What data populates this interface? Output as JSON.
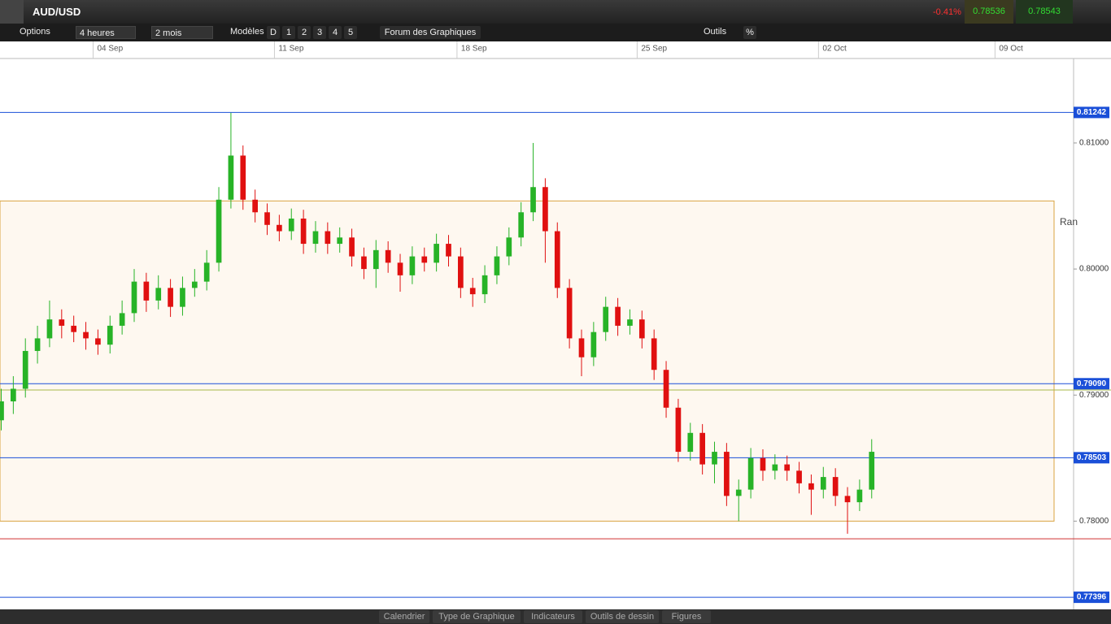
{
  "toolbar": {
    "symbol": "AUD/USD",
    "change": "-0.41%",
    "bid": "0.78536",
    "ask": "0.78543",
    "options": "Options",
    "interval": "4 heures",
    "range": "2 mois",
    "templates": "Modèles",
    "periods": [
      "D",
      "1",
      "2",
      "3",
      "4",
      "5"
    ],
    "forum": "Forum des Graphiques",
    "tools": "Outils",
    "percent": "%"
  },
  "bottom_bar": [
    "Calendrier",
    "Type de Graphique",
    "Indicateurs",
    "Outils de dessin",
    "Figures"
  ],
  "chart_data": {
    "type": "candlestick",
    "categories": [
      null,
      null,
      null,
      null,
      null,
      null,
      null,
      null,
      null,
      null,
      null,
      null,
      null,
      null,
      null,
      null,
      null,
      null,
      null,
      null,
      null,
      null,
      null,
      null,
      null,
      null,
      null,
      null,
      null,
      null,
      null,
      null,
      null,
      null,
      null,
      null,
      null,
      null,
      null,
      null,
      null,
      null,
      null,
      null,
      null,
      null,
      null,
      null,
      null,
      null,
      null,
      null,
      null,
      null,
      null,
      null,
      null,
      null,
      null,
      null,
      null,
      null,
      null,
      null,
      null,
      null,
      null,
      null,
      null,
      null,
      null,
      null,
      null
    ],
    "open": [
      0.788,
      0.7895,
      0.7905,
      0.7935,
      0.7945,
      0.796,
      0.7955,
      0.795,
      0.7945,
      0.794,
      0.7955,
      0.7965,
      0.799,
      0.7975,
      0.7985,
      0.797,
      0.7985,
      0.799,
      0.8005,
      0.8055,
      0.809,
      0.8055,
      0.8045,
      0.8035,
      0.803,
      0.804,
      0.802,
      0.803,
      0.802,
      0.8025,
      0.801,
      0.8,
      0.8015,
      0.8005,
      0.7995,
      0.801,
      0.8005,
      0.802,
      0.801,
      0.7985,
      0.798,
      0.7995,
      0.801,
      0.8025,
      0.8045,
      0.8065,
      0.803,
      0.7985,
      0.7945,
      0.793,
      0.795,
      0.797,
      0.7955,
      0.796,
      0.7945,
      0.792,
      0.789,
      0.7855,
      0.787,
      0.7845,
      0.7855,
      0.782,
      0.7825,
      0.785,
      0.784,
      0.7845,
      0.784,
      0.783,
      0.7825,
      0.7835,
      0.782,
      0.7815,
      0.7825
    ],
    "high": [
      0.7905,
      0.7915,
      0.7945,
      0.7955,
      0.7975,
      0.7968,
      0.7963,
      0.7958,
      0.7952,
      0.7963,
      0.7975,
      0.8,
      0.7997,
      0.7995,
      0.7992,
      0.7994,
      0.8,
      0.8015,
      0.8065,
      0.8124,
      0.8098,
      0.8063,
      0.8052,
      0.8043,
      0.8048,
      0.8047,
      0.8038,
      0.8037,
      0.8033,
      0.8032,
      0.8017,
      0.8023,
      0.8022,
      0.8012,
      0.8018,
      0.8017,
      0.8028,
      0.8027,
      0.8017,
      0.7993,
      0.8003,
      0.8018,
      0.8033,
      0.8053,
      0.81,
      0.8072,
      0.8037,
      0.7992,
      0.7952,
      0.7958,
      0.7978,
      0.7977,
      0.7968,
      0.7967,
      0.7952,
      0.7927,
      0.7897,
      0.7878,
      0.7877,
      0.7863,
      0.7862,
      0.7833,
      0.7858,
      0.7857,
      0.7853,
      0.7852,
      0.7847,
      0.7837,
      0.7843,
      0.7842,
      0.7827,
      0.7833,
      0.7865
    ],
    "low": [
      0.7872,
      0.7885,
      0.7898,
      0.7925,
      0.7938,
      0.7945,
      0.7942,
      0.7936,
      0.7932,
      0.7933,
      0.7948,
      0.7958,
      0.7966,
      0.7968,
      0.7962,
      0.7963,
      0.7978,
      0.7983,
      0.7998,
      0.8048,
      0.8047,
      0.8037,
      0.8027,
      0.8022,
      0.8023,
      0.8012,
      0.8013,
      0.8012,
      0.8013,
      0.8002,
      0.7992,
      0.7985,
      0.7997,
      0.7982,
      0.7988,
      0.7998,
      0.7998,
      0.8002,
      0.7977,
      0.797,
      0.7973,
      0.7988,
      0.8003,
      0.8018,
      0.8038,
      0.8005,
      0.7977,
      0.7937,
      0.7915,
      0.7923,
      0.7943,
      0.7947,
      0.7948,
      0.7937,
      0.7912,
      0.7882,
      0.7847,
      0.7848,
      0.7837,
      0.783,
      0.7812,
      0.78,
      0.7818,
      0.7832,
      0.7833,
      0.7832,
      0.7822,
      0.7805,
      0.7818,
      0.7812,
      0.779,
      0.7808,
      0.7818
    ],
    "close": [
      0.7895,
      0.7905,
      0.7935,
      0.7945,
      0.796,
      0.7955,
      0.795,
      0.7945,
      0.794,
      0.7955,
      0.7965,
      0.799,
      0.7975,
      0.7985,
      0.797,
      0.7985,
      0.799,
      0.8005,
      0.8055,
      0.809,
      0.8055,
      0.8045,
      0.8035,
      0.803,
      0.804,
      0.802,
      0.803,
      0.802,
      0.8025,
      0.801,
      0.8,
      0.8015,
      0.8005,
      0.7995,
      0.801,
      0.8005,
      0.802,
      0.801,
      0.7985,
      0.798,
      0.7995,
      0.801,
      0.8025,
      0.8045,
      0.8065,
      0.803,
      0.7985,
      0.7945,
      0.793,
      0.795,
      0.797,
      0.7955,
      0.796,
      0.7945,
      0.792,
      0.789,
      0.7855,
      0.787,
      0.7845,
      0.7855,
      0.782,
      0.7825,
      0.785,
      0.784,
      0.7845,
      0.784,
      0.783,
      0.7825,
      0.7835,
      0.782,
      0.7815,
      0.7825,
      0.7855
    ],
    "up_color": "#27b327",
    "down_color": "#e01010",
    "xlim": [
      -0.1,
      88.7
    ],
    "xticks": [
      {
        "value": 7.6,
        "label": "04 Sep"
      },
      {
        "value": 22.6,
        "label": "11 Sep"
      },
      {
        "value": 37.7,
        "label": "18 Sep"
      },
      {
        "value": 52.6,
        "label": "25 Sep"
      },
      {
        "value": 67.6,
        "label": "02 Oct"
      },
      {
        "value": 82.2,
        "label": "09 Oct"
      }
    ],
    "ylim": [
      0.773,
      0.8167
    ],
    "yticks": [
      {
        "value": 0.78,
        "label": "0.78000"
      },
      {
        "value": 0.79,
        "label": "0.79000"
      },
      {
        "value": 0.8,
        "label": "0.80000"
      },
      {
        "value": 0.81,
        "label": "0.81000"
      }
    ],
    "levels": [
      0.81242,
      {
        "value": 0.7909,
        "label": "0.79090"
      },
      0.78503,
      0.77396
    ],
    "level_color": "#1a4fd8",
    "other_lines": [
      {
        "value": 0.7786,
        "color": "#d03030"
      },
      {
        "value": 0.7904,
        "color": "#a8b84a"
      }
    ],
    "range_box": {
      "ylim": [
        0.78,
        0.8054
      ],
      "color": "#d9a340",
      "label": "Ran"
    }
  }
}
